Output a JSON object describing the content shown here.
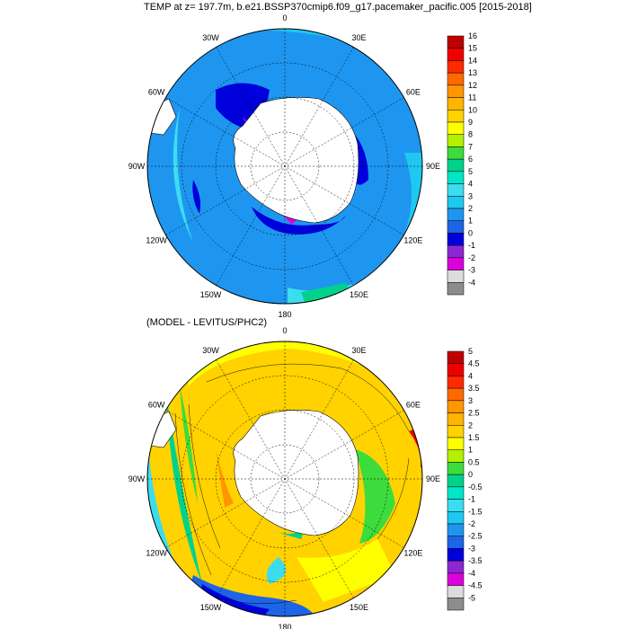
{
  "panels": [
    {
      "id": "temp",
      "title": "TEMP at z= 197.7m, b.e21.BSSP370cmip6.f09_g17.pacemaker_pacific.005 [2015-2018]",
      "lon_labels": [
        "0",
        "30E",
        "60E",
        "90E",
        "120E",
        "150E",
        "180",
        "150W",
        "120W",
        "90W",
        "60W",
        "30W"
      ],
      "colorbar": {
        "labels": [
          "16",
          "15",
          "14",
          "13",
          "12",
          "11",
          "10",
          "9",
          "8",
          "7",
          "6",
          "5",
          "4",
          "3",
          "2",
          "1",
          "0",
          "-1",
          "-2",
          "-3",
          "-4"
        ],
        "colors": [
          "#c00000",
          "#ee0000",
          "#ff2a00",
          "#ff6a00",
          "#ff9600",
          "#ffb400",
          "#ffd200",
          "#ffff00",
          "#b4f000",
          "#3cdc3c",
          "#00d28c",
          "#00e6c8",
          "#3cdcf0",
          "#1ec8f0",
          "#1e96f0",
          "#1e64e6",
          "#0000dc",
          "#8c28d2",
          "#dc00dc",
          "#dcdcdc",
          "#8c8c8c"
        ]
      }
    },
    {
      "id": "diff",
      "title": "(MODEL - LEVITUS/PHC2)",
      "lon_labels": [
        "0",
        "30E",
        "60E",
        "90E",
        "120E",
        "150E",
        "180",
        "150W",
        "120W",
        "90W",
        "60W",
        "30W"
      ],
      "colorbar": {
        "labels": [
          "5",
          "4.5",
          "4",
          "3.5",
          "3",
          "2.5",
          "2",
          "1.5",
          "1",
          "0.5",
          "0",
          "-0.5",
          "-1",
          "-1.5",
          "-2",
          "-2.5",
          "-3",
          "-3.5",
          "-4",
          "-4.5",
          "-5"
        ],
        "colors": [
          "#c00000",
          "#ee0000",
          "#ff2a00",
          "#ff6a00",
          "#ff9600",
          "#ffb400",
          "#ffd200",
          "#ffff00",
          "#b4f000",
          "#3cdc3c",
          "#00d28c",
          "#00e6c8",
          "#3cdcf0",
          "#1ec8f0",
          "#1e96f0",
          "#1e64e6",
          "#0000dc",
          "#8c28d2",
          "#dc00dc",
          "#dcdcdc",
          "#8c8c8c"
        ]
      }
    }
  ]
}
